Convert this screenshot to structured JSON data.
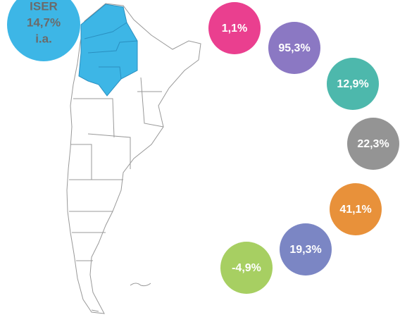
{
  "badge": {
    "lines": [
      "ISER",
      "14,7%",
      "i.a."
    ],
    "color": "#3db6e6"
  },
  "bubbles": [
    {
      "label": "1,1%",
      "color": "#ea3f8f"
    },
    {
      "label": "95,3%",
      "color": "#8b78c3"
    },
    {
      "label": "12,9%",
      "color": "#4db8ac"
    },
    {
      "label": "22,3%",
      "color": "#949494"
    },
    {
      "label": "41,1%",
      "color": "#e8913a"
    },
    {
      "label": "19,3%",
      "color": "#7b86c4"
    },
    {
      "label": "-4,9%",
      "color": "#a7cf62"
    }
  ]
}
